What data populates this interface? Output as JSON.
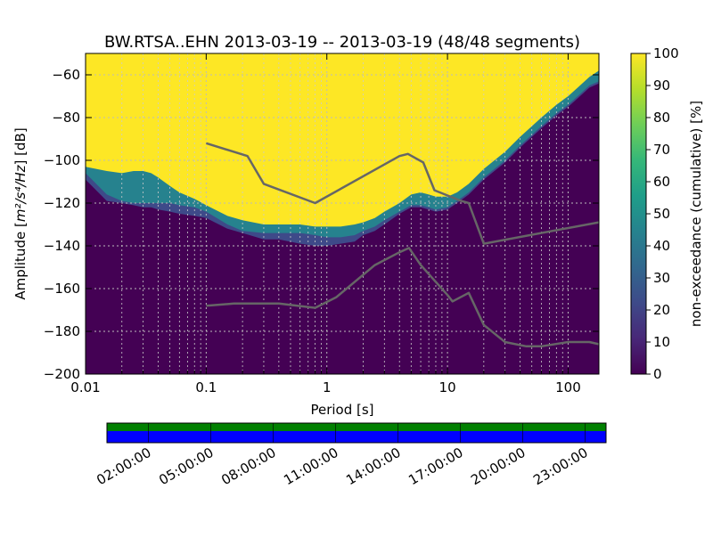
{
  "chart_data": {
    "type": "heatmap",
    "title": "BW.RTSA..EHN   2013-03-19 -- 2013-03-19  (48/48 segments)",
    "xlabel": "Period [s]",
    "ylabel_prefix": "Amplitude [",
    "ylabel_units_html": "m²/s⁴/Hz",
    "ylabel_suffix": "] [dB]",
    "x_scale": "log",
    "xlim": [
      0.01,
      180
    ],
    "ylim": [
      -200,
      -50
    ],
    "x_ticks": [
      {
        "value": 0.01,
        "label": "0.01"
      },
      {
        "value": 0.1,
        "label": "0.1"
      },
      {
        "value": 1,
        "label": "1"
      },
      {
        "value": 10,
        "label": "10"
      },
      {
        "value": 100,
        "label": "100"
      }
    ],
    "y_ticks": [
      {
        "value": -60,
        "label": "−60"
      },
      {
        "value": -80,
        "label": "−80"
      },
      {
        "value": -100,
        "label": "−100"
      },
      {
        "value": -120,
        "label": "−120"
      },
      {
        "value": -140,
        "label": "−140"
      },
      {
        "value": -160,
        "label": "−160"
      },
      {
        "value": -180,
        "label": "−180"
      },
      {
        "value": -200,
        "label": "−200"
      }
    ],
    "grid": true,
    "colorbar": {
      "label": "non-exceedance (cumulative) [%]",
      "range": [
        0,
        100
      ],
      "ticks": [
        "0",
        "10",
        "20",
        "30",
        "40",
        "50",
        "60",
        "70",
        "80",
        "90",
        "100"
      ],
      "colormap": [
        "#440154",
        "#482878",
        "#3e4a89",
        "#31688e",
        "#26828e",
        "#1f9e89",
        "#35b779",
        "#6ece58",
        "#b5de2b",
        "#fde725"
      ]
    },
    "psd_boundaries": {
      "period": [
        0.01,
        0.015,
        0.02,
        0.025,
        0.03,
        0.035,
        0.04,
        0.05,
        0.06,
        0.08,
        0.1,
        0.15,
        0.2,
        0.3,
        0.4,
        0.6,
        0.8,
        1,
        1.3,
        1.7,
        2,
        2.5,
        3,
        4,
        5,
        6,
        7,
        8,
        10,
        12,
        15,
        20,
        30,
        40,
        60,
        80,
        100,
        120,
        150,
        180
      ],
      "yellow_lower": [
        -103,
        -105,
        -106,
        -105,
        -105,
        -106,
        -108,
        -112,
        -115,
        -118,
        -121,
        -126,
        -128,
        -130,
        -130,
        -130,
        -131,
        -131,
        -131,
        -130,
        -129,
        -127,
        -124,
        -120,
        -116,
        -115,
        -116,
        -117,
        -117,
        -115,
        -111,
        -104,
        -96,
        -89,
        -80,
        -74,
        -70,
        -66,
        -61,
        -58
      ],
      "teal_lower": [
        -106,
        -116,
        -119,
        -120,
        -120,
        -120,
        -120,
        -120,
        -121,
        -122,
        -124,
        -130,
        -133,
        -134,
        -134,
        -134,
        -135,
        -136,
        -136,
        -135,
        -133,
        -131,
        -128,
        -124,
        -121,
        -121,
        -122,
        -123,
        -122,
        -119,
        -115,
        -108,
        -100,
        -93,
        -84,
        -78,
        -74,
        -70,
        -65,
        -63
      ],
      "blue_lower": [
        -109,
        -119,
        -120,
        -121,
        -122,
        -122,
        -123,
        -124,
        -125,
        -126,
        -127,
        -132,
        -134,
        -137,
        -137,
        -139,
        -140,
        -140,
        -139,
        -138,
        -135,
        -133,
        -130,
        -125,
        -122,
        -122,
        -123,
        -124,
        -123,
        -120,
        -116,
        -109,
        -101,
        -94,
        -85,
        -79,
        -75,
        -71,
        -66,
        -64
      ]
    },
    "series": [
      {
        "color": "#666666",
        "x": [
          0.1,
          0.22,
          0.3,
          0.8,
          4,
          4.7,
          6.3,
          7.8,
          13,
          15,
          20,
          180
        ],
        "y": [
          -92,
          -98,
          -111,
          -120,
          -98,
          -97,
          -101,
          -114,
          -119,
          -120,
          -139,
          -129
        ]
      },
      {
        "color": "#666666",
        "x": [
          0.1,
          0.17,
          0.4,
          0.8,
          1.2,
          2.5,
          4,
          4.8,
          6,
          10,
          11,
          15,
          20,
          30,
          45,
          60,
          100,
          150,
          180
        ],
        "y": [
          -168,
          -167,
          -167,
          -169,
          -164,
          -149,
          -143,
          -141,
          -149,
          -163,
          -166,
          -162,
          -177,
          -185,
          -187,
          -187,
          -185,
          -185,
          -186
        ]
      }
    ]
  },
  "timeline": {
    "tick_labels": [
      "02:00:00",
      "05:00:00",
      "08:00:00",
      "11:00:00",
      "14:00:00",
      "17:00:00",
      "20:00:00",
      "23:00:00"
    ],
    "tick_fractions": [
      0.0833,
      0.2083,
      0.3333,
      0.4583,
      0.5833,
      0.7083,
      0.8333,
      0.9583
    ],
    "top_band_color": "#008000",
    "bottom_band_color": "#0000ff"
  }
}
